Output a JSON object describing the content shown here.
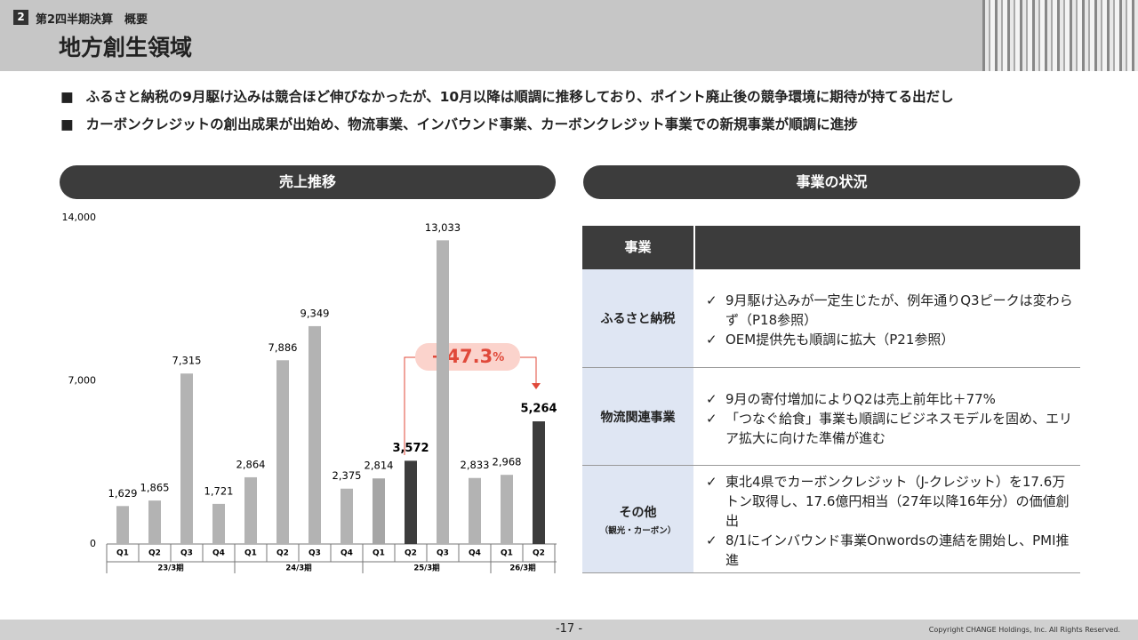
{
  "header": {
    "section": "2",
    "subtitle": "第2四半期決算　概要",
    "title": "地方創生領域"
  },
  "bullets": [
    "ふるさと納税の9月駆け込みは競合ほど伸びなかったが、10月以降は順調に推移しており、ポイント廃止後の競争環境に期待が持てる出だし",
    "カーボンクレジットの創出成果が出始め、物流事業、インバウンド事業、カーボンクレジット事業での新規事業が順調に進捗"
  ],
  "left_heading": "売上推移",
  "right_heading": "事業の状況",
  "chart_data": {
    "type": "bar",
    "categories": [
      "Q1",
      "Q2",
      "Q3",
      "Q4",
      "Q1",
      "Q2",
      "Q3",
      "Q4",
      "Q1",
      "Q2",
      "Q3",
      "Q4",
      "Q1",
      "Q2"
    ],
    "groups": [
      {
        "label": "23/3期",
        "count": 4
      },
      {
        "label": "24/3期",
        "count": 4
      },
      {
        "label": "25/3期",
        "count": 4
      },
      {
        "label": "26/3期",
        "count": 2
      }
    ],
    "values": [
      1629,
      1865,
      7315,
      1721,
      2864,
      7886,
      9349,
      2375,
      2814,
      3572,
      13033,
      2833,
      2968,
      5264
    ],
    "value_labels": [
      "1,629",
      "1,865",
      "7,315",
      "1,721",
      "2,864",
      "7,886",
      "9,349",
      "2,375",
      "2,814",
      "3,572",
      "13,033",
      "2,833",
      "2,968",
      "5,264"
    ],
    "colors": [
      "#b3b3b3",
      "#b3b3b3",
      "#b3b3b3",
      "#b3b3b3",
      "#b3b3b3",
      "#b3b3b3",
      "#b3b3b3",
      "#b3b3b3",
      "#a6a6a6",
      "#3c3c3c",
      "#b3b3b3",
      "#b3b3b3",
      "#b3b3b3",
      "#3c3c3c"
    ],
    "ylim": [
      0,
      14000
    ],
    "yticks": [
      0,
      {
        "value": 7000,
        "label": "7,000"
      },
      {
        "value": 14000,
        "label": "14,000"
      }
    ],
    "annotation": {
      "text": "+47.3",
      "unit": "%"
    }
  },
  "table": {
    "header": [
      "事業"
    ],
    "rows": [
      {
        "name": "ふるさと納税",
        "items": [
          "9月駆け込みが一定生じたが、例年通りQ3ピークは変わらず（P18参照）",
          "OEM提供先も順調に拡大（P21参照）"
        ]
      },
      {
        "name": "物流関連事業",
        "items": [
          "9月の寄付増加によりQ2は売上前年比＋77%",
          "「つなぐ給食」事業も順調にビジネスモデルを固め、エリア拡大に向けた準備が進む"
        ]
      },
      {
        "name": "その他",
        "sub": "（観光・カーボン）",
        "items": [
          "東北4県でカーボンクレジット（J-クレジット）を17.6万トン取得し、17.6億円相当（27年以降16年分）の価値創出",
          "8/1にインバウンド事業Onwordsの連結を開始し、PMI推進"
        ]
      }
    ]
  },
  "footer": {
    "page": "-17 -",
    "copyright": "Copyright CHANGE Holdings, Inc. All Rights Reserved."
  }
}
